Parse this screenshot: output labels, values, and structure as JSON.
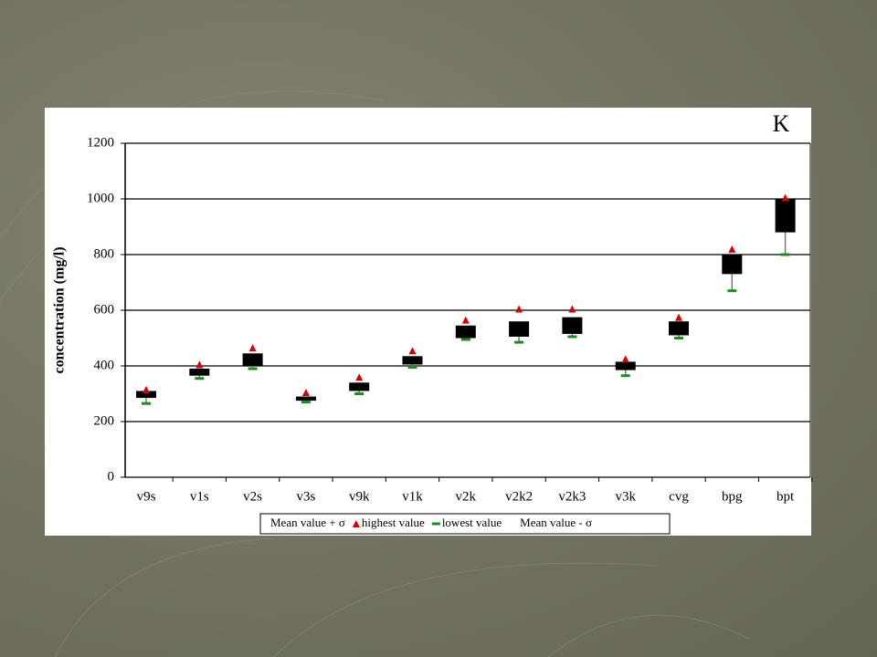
{
  "chart_data": {
    "type": "range-box",
    "annotation": "K",
    "y_label": "concentration (mg/l)",
    "categories": [
      "v9s",
      "v1s",
      "v2s",
      "v3s",
      "v9k",
      "v1k",
      "v2k",
      "v2k2",
      "v2k3",
      "v3k",
      "cvg",
      "bpg",
      "bpt"
    ],
    "series": [
      {
        "name": "Mean value + σ",
        "color": "#000000",
        "marker": "box",
        "values": [
          310,
          390,
          445,
          290,
          340,
          435,
          545,
          560,
          575,
          415,
          560,
          800,
          1000
        ]
      },
      {
        "name": "highest value",
        "color": "#d40000",
        "marker": "triangle",
        "values": [
          315,
          405,
          465,
          305,
          360,
          455,
          565,
          605,
          605,
          425,
          575,
          820,
          1005
        ]
      },
      {
        "name": "lowest value",
        "color": "#1e8c1e",
        "marker": "dash",
        "values": [
          265,
          355,
          390,
          270,
          300,
          395,
          495,
          485,
          505,
          365,
          500,
          670,
          800
        ]
      },
      {
        "name": "Mean value - σ",
        "color": "#000000",
        "marker": "box",
        "values": [
          285,
          365,
          400,
          275,
          310,
          405,
          500,
          505,
          515,
          385,
          510,
          730,
          880
        ]
      }
    ],
    "ylim": [
      0,
      1200
    ],
    "yticks": [
      0,
      200,
      400,
      600,
      800,
      1000,
      1200
    ],
    "grid": true,
    "legend": "bottom"
  }
}
